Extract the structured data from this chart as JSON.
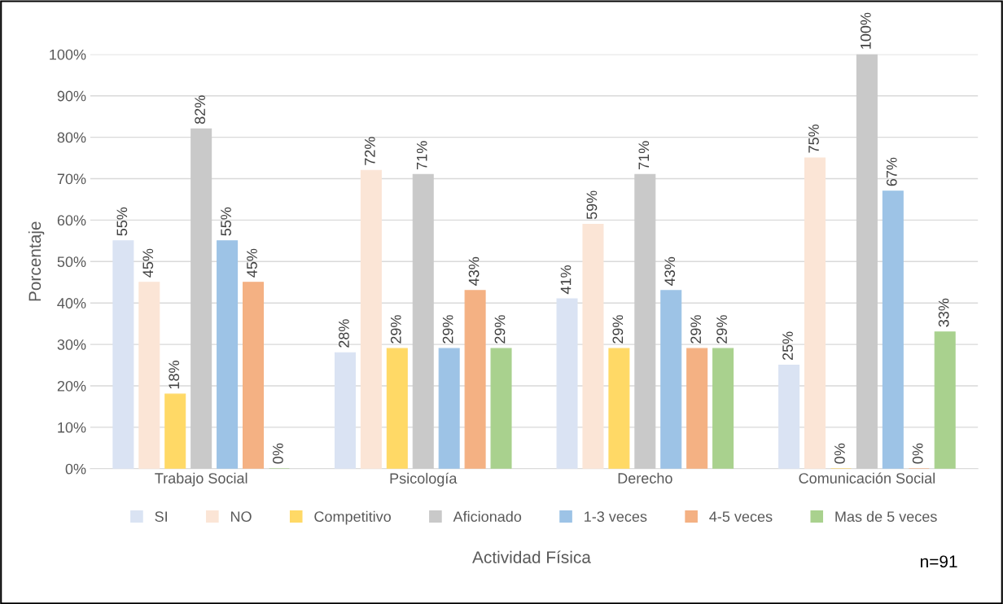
{
  "chart_data": {
    "type": "bar",
    "xlabel": "Actividad Física",
    "ylabel": "Porcentaje",
    "categories": [
      "Trabajo Social",
      "Psicología",
      "Derecho",
      "Comunicación Social"
    ],
    "series": [
      {
        "name": "SI",
        "color": "#dae3f3",
        "values": [
          55,
          28,
          41,
          25
        ],
        "value_labels": [
          "55%",
          "28%",
          "41%",
          "25%"
        ]
      },
      {
        "name": "NO",
        "color": "#fbe5d6",
        "values": [
          45,
          72,
          59,
          75
        ],
        "value_labels": [
          "45%",
          "72%",
          "59%",
          "75%"
        ]
      },
      {
        "name": "Competitivo",
        "color": "#ffd966",
        "values": [
          18,
          29,
          29,
          0
        ],
        "value_labels": [
          "18%",
          "29%",
          "29%",
          "0%"
        ]
      },
      {
        "name": "Aficionado",
        "color": "#c9c9c9",
        "values": [
          82,
          71,
          71,
          100
        ],
        "value_labels": [
          "82%",
          "71%",
          "71%",
          "100%"
        ]
      },
      {
        "name": "1-3 veces",
        "color": "#9dc3e6",
        "values": [
          55,
          29,
          43,
          67
        ],
        "value_labels": [
          "55%",
          "29%",
          "43%",
          "67%"
        ]
      },
      {
        "name": "4-5 veces",
        "color": "#f4b183",
        "values": [
          45,
          43,
          29,
          0
        ],
        "value_labels": [
          "45%",
          "43%",
          "29%",
          "0%"
        ]
      },
      {
        "name": "Mas de 5 veces",
        "color": "#a9d18e",
        "values": [
          0,
          29,
          29,
          33
        ],
        "value_labels": [
          "0%",
          "29%",
          "29%",
          "33%"
        ]
      }
    ],
    "ylim": [
      0,
      100
    ],
    "yticks": [
      {
        "value": 0,
        "label": "0%"
      },
      {
        "value": 10,
        "label": "10%"
      },
      {
        "value": 20,
        "label": "20%"
      },
      {
        "value": 30,
        "label": "30%"
      },
      {
        "value": 40,
        "label": "40%"
      },
      {
        "value": 50,
        "label": "50%"
      },
      {
        "value": 60,
        "label": "60%"
      },
      {
        "value": 70,
        "label": "70%"
      },
      {
        "value": 80,
        "label": "80%"
      },
      {
        "value": 90,
        "label": "90%"
      },
      {
        "value": 100,
        "label": "100%"
      }
    ],
    "grid": "y",
    "legend": "bottom",
    "annotations": [
      "n=91"
    ]
  }
}
